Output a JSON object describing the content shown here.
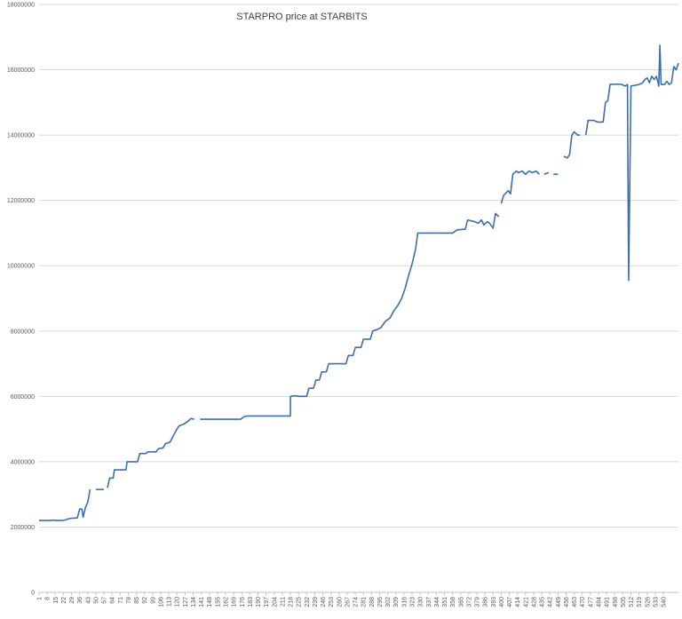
{
  "chart_data": {
    "type": "line",
    "title": "STARPRO price at STARBITS",
    "xlabel": "",
    "ylabel": "",
    "xlim": [
      1,
      540
    ],
    "ylim": [
      0,
      18000000
    ],
    "yticks": [
      0,
      2000000,
      4000000,
      6000000,
      8000000,
      10000000,
      12000000,
      14000000,
      16000000,
      18000000
    ],
    "ytick_labels": [
      "0",
      "2000000",
      "4000000",
      "6000000",
      "8000000",
      "10000000",
      "12000000",
      "14000000",
      "16000000",
      "18000000"
    ],
    "xticks": [
      1,
      8,
      15,
      22,
      29,
      36,
      43,
      50,
      57,
      64,
      71,
      78,
      85,
      92,
      99,
      106,
      113,
      120,
      127,
      134,
      141,
      148,
      155,
      162,
      169,
      176,
      183,
      190,
      197,
      204,
      211,
      218,
      225,
      232,
      239,
      246,
      253,
      260,
      267,
      274,
      281,
      288,
      295,
      302,
      309,
      316,
      323,
      330,
      337,
      344,
      351,
      358,
      365,
      372,
      379,
      386,
      393,
      400,
      407,
      414,
      421,
      428,
      435,
      442,
      449,
      456,
      463,
      470,
      477,
      484,
      491,
      498,
      505,
      512,
      519,
      526,
      533,
      540
    ],
    "grid": "horizontal",
    "legend": "none",
    "color": "#3b6fb0",
    "series": [
      {
        "segments": [
          [
            [
              1,
              2200000
            ],
            [
              10,
              2200000
            ],
            [
              14,
              2210000
            ],
            [
              17,
              2200000
            ],
            [
              21,
              2200000
            ],
            [
              24,
              2220000
            ],
            [
              27,
              2260000
            ],
            [
              30,
              2270000
            ],
            [
              34,
              2280000
            ],
            [
              36,
              2550000
            ],
            [
              38,
              2550000
            ],
            [
              39,
              2300000
            ],
            [
              41,
              2600000
            ],
            [
              43,
              2750000
            ],
            [
              45,
              3150000
            ]
          ],
          [
            [
              50,
              3150000
            ],
            [
              57,
              3150000
            ]
          ],
          [
            [
              60,
              3200000
            ],
            [
              62,
              3500000
            ],
            [
              65,
              3500000
            ],
            [
              66,
              3750000
            ],
            [
              76,
              3750000
            ],
            [
              77,
              4000000
            ],
            [
              86,
              4000000
            ],
            [
              88,
              4250000
            ],
            [
              93,
              4250000
            ],
            [
              95,
              4300000
            ],
            [
              102,
              4300000
            ],
            [
              104,
              4400000
            ],
            [
              108,
              4420000
            ],
            [
              110,
              4550000
            ],
            [
              114,
              4600000
            ],
            [
              117,
              4800000
            ],
            [
              120,
              5000000
            ],
            [
              122,
              5100000
            ],
            [
              126,
              5150000
            ],
            [
              130,
              5250000
            ],
            [
              132,
              5320000
            ],
            [
              135,
              5300000
            ]
          ],
          [
            [
              140,
              5300000
            ],
            [
              175,
              5300000
            ],
            [
              178,
              5380000
            ],
            [
              181,
              5400000
            ],
            [
              218,
              5400000
            ],
            [
              218,
              6000000
            ],
            [
              222,
              6020000
            ],
            [
              226,
              6000000
            ],
            [
              232,
              6000000
            ],
            [
              234,
              6250000
            ],
            [
              238,
              6250000
            ],
            [
              240,
              6500000
            ],
            [
              243,
              6500000
            ],
            [
              245,
              6750000
            ],
            [
              249,
              6750000
            ],
            [
              251,
              7000000
            ],
            [
              266,
              7000000
            ],
            [
              268,
              7250000
            ],
            [
              272,
              7250000
            ],
            [
              274,
              7500000
            ],
            [
              279,
              7500000
            ],
            [
              281,
              7750000
            ],
            [
              287,
              7750000
            ],
            [
              289,
              8000000
            ],
            [
              293,
              8050000
            ],
            [
              296,
              8100000
            ],
            [
              300,
              8300000
            ],
            [
              304,
              8400000
            ],
            [
              307,
              8600000
            ],
            [
              311,
              8800000
            ],
            [
              314,
              9000000
            ],
            [
              317,
              9300000
            ],
            [
              320,
              9700000
            ],
            [
              323,
              10050000
            ],
            [
              326,
              10500000
            ],
            [
              328,
              11000000
            ],
            [
              358,
              11000000
            ],
            [
              362,
              11100000
            ],
            [
              369,
              11120000
            ],
            [
              371,
              11400000
            ],
            [
              377,
              11350000
            ],
            [
              380,
              11300000
            ],
            [
              383,
              11400000
            ],
            [
              385,
              11250000
            ],
            [
              388,
              11350000
            ],
            [
              390,
              11300000
            ],
            [
              393,
              11150000
            ],
            [
              395,
              11600000
            ],
            [
              398,
              11500000
            ]
          ],
          [
            [
              400,
              11900000
            ],
            [
              402,
              12150000
            ],
            [
              406,
              12300000
            ],
            [
              408,
              12200000
            ],
            [
              410,
              12800000
            ],
            [
              413,
              12900000
            ],
            [
              415,
              12850000
            ],
            [
              418,
              12900000
            ],
            [
              421,
              12800000
            ],
            [
              424,
              12900000
            ],
            [
              427,
              12850000
            ],
            [
              430,
              12900000
            ],
            [
              433,
              12800000
            ]
          ],
          [
            [
              437,
              12800000
            ],
            [
              441,
              12850000
            ]
          ],
          [
            [
              445,
              12800000
            ],
            [
              449,
              12800000
            ]
          ],
          [
            [
              454,
              13350000
            ],
            [
              457,
              13300000
            ],
            [
              459,
              13400000
            ],
            [
              461,
              14000000
            ],
            [
              463,
              14100000
            ],
            [
              466,
              14000000
            ],
            [
              468,
              14000000
            ]
          ],
          [
            [
              473,
              14000000
            ],
            [
              475,
              14450000
            ],
            [
              480,
              14450000
            ],
            [
              483,
              14400000
            ],
            [
              488,
              14400000
            ],
            [
              490,
              15000000
            ],
            [
              492,
              15050000
            ],
            [
              494,
              15550000
            ],
            [
              500,
              15560000
            ],
            [
              504,
              15550000
            ],
            [
              507,
              15500000
            ],
            [
              509,
              15550000
            ],
            [
              510,
              9550000
            ],
            [
              512,
              15500000
            ],
            [
              519,
              15550000
            ],
            [
              522,
              15600000
            ],
            [
              524,
              15700000
            ],
            [
              526,
              15750000
            ],
            [
              528,
              15600000
            ],
            [
              530,
              15800000
            ],
            [
              532,
              15700000
            ],
            [
              534,
              15800000
            ],
            [
              536,
              15500000
            ],
            [
              537,
              16750000
            ],
            [
              538,
              15550000
            ],
            [
              541,
              15550000
            ],
            [
              543,
              15650000
            ],
            [
              545,
              15550000
            ],
            [
              547,
              15600000
            ],
            [
              549,
              16100000
            ],
            [
              551,
              16000000
            ],
            [
              553,
              16200000
            ]
          ]
        ]
      }
    ]
  }
}
